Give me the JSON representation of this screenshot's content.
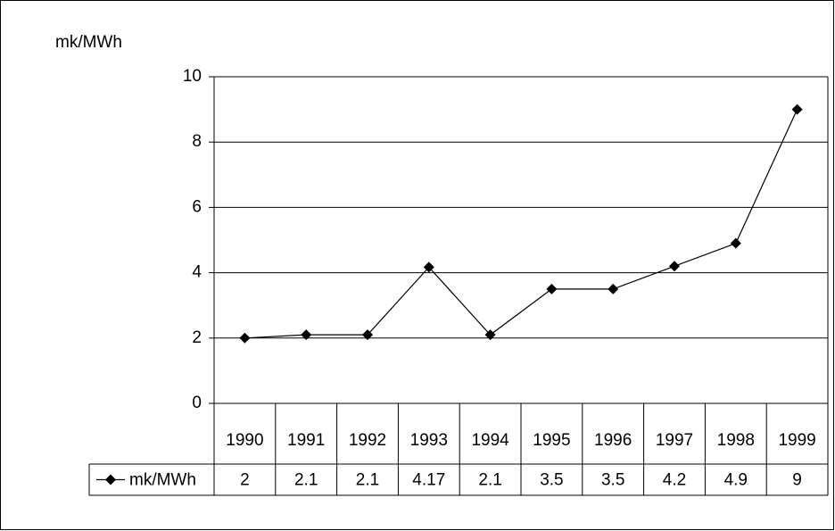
{
  "chart_data": {
    "type": "line",
    "y_label": "mk/MWh",
    "categories": [
      "1990",
      "1991",
      "1992",
      "1993",
      "1994",
      "1995",
      "1996",
      "1997",
      "1998",
      "1999"
    ],
    "series": [
      {
        "name": "mk/MWh",
        "color": "#000000",
        "values": [
          2,
          2.1,
          2.1,
          4.17,
          2.1,
          3.5,
          3.5,
          4.2,
          4.9,
          9
        ]
      }
    ],
    "ylim": [
      0,
      10
    ],
    "yticks": [
      0,
      2,
      4,
      6,
      8,
      10
    ],
    "grid": true,
    "data_table": true
  }
}
